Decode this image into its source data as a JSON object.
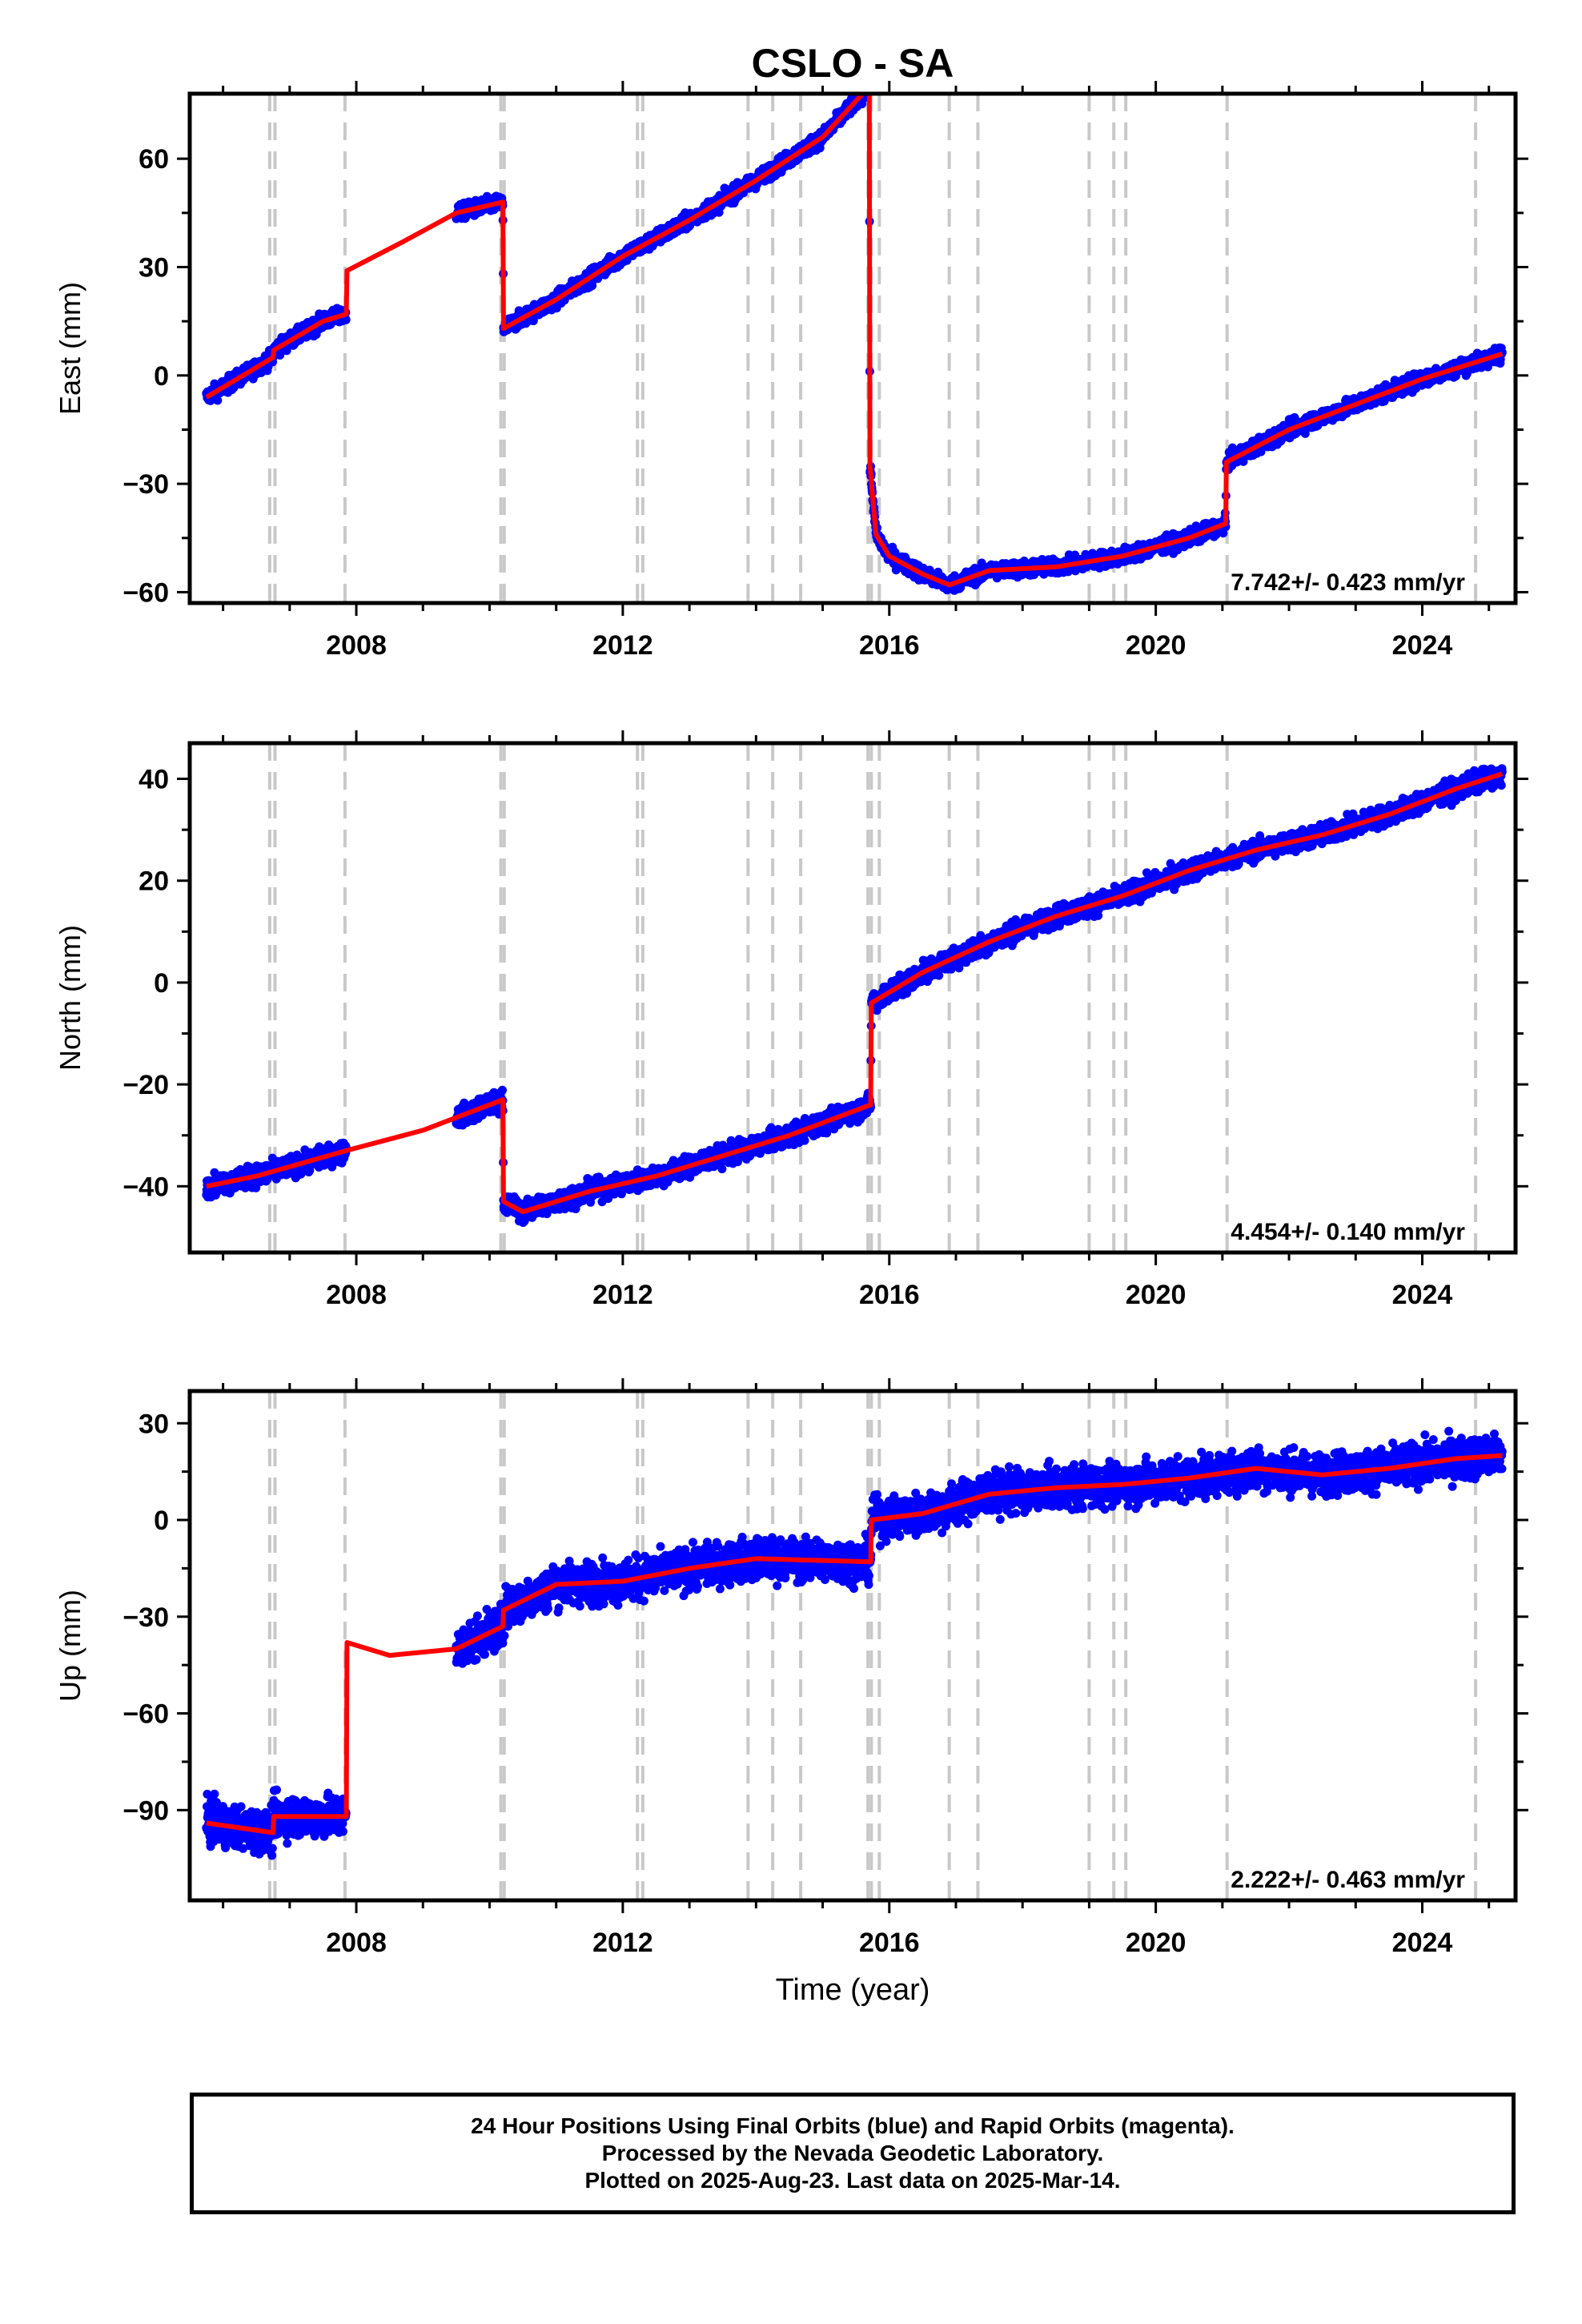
{
  "chart_data": [
    {
      "type": "scatter",
      "title": "CSLO - SA",
      "ylabel": "East (mm)",
      "xlabel": "",
      "xlim": [
        2005.5,
        2025.4
      ],
      "ylim": [
        -63,
        78
      ],
      "x_ticks": [
        2008,
        2012,
        2016,
        2020,
        2024
      ],
      "y_ticks": [
        -60,
        -30,
        0,
        30,
        60
      ],
      "x_tick_labels": [
        "2008",
        "2012",
        "2016",
        "2020",
        "2024"
      ],
      "y_tick_labels": [
        "−60",
        "−30",
        "0",
        "30",
        "60"
      ],
      "rate_label": "7.742+/- 0.423 mm/yr",
      "grid": false,
      "colors": {
        "final": "#0000ff",
        "model": "#ff0000",
        "steps": "#c8c8c8"
      },
      "data_ranges": [
        [
          2005.75,
          2007.85
        ],
        [
          2009.5,
          2015.72
        ],
        [
          2015.72,
          2025.2
        ]
      ],
      "scatter": 1.5,
      "model_line": {
        "x": [
          2005.75,
          2006.3,
          2006.75,
          2006.76,
          2007.5,
          2007.85,
          2007.86,
          2008.7,
          2009.5,
          2010.2,
          2010.21,
          2011.0,
          2012.0,
          2013.0,
          2014.0,
          2015.0,
          2015.7,
          2015.71,
          2015.8,
          2016.0,
          2016.5,
          2016.9,
          2017.5,
          2018.5,
          2019.5,
          2020.5,
          2021.05,
          2021.06,
          2022.0,
          2023.0,
          2024.0,
          2025.2
        ],
        "y": [
          -6,
          0,
          5,
          7,
          15,
          17,
          29,
          37,
          45,
          48,
          13,
          21,
          33,
          43,
          54,
          66,
          80,
          -25,
          -44,
          -50,
          -55,
          -58,
          -54,
          -53,
          -50,
          -45,
          -41,
          -24,
          -15,
          -8,
          -1,
          6
        ]
      }
    },
    {
      "type": "scatter",
      "title": "",
      "ylabel": "North (mm)",
      "xlabel": "",
      "xlim": [
        2005.5,
        2025.4
      ],
      "ylim": [
        -53,
        47
      ],
      "x_ticks": [
        2008,
        2012,
        2016,
        2020,
        2024
      ],
      "y_ticks": [
        -40,
        -20,
        0,
        20,
        40
      ],
      "x_tick_labels": [
        "2008",
        "2012",
        "2016",
        "2020",
        "2024"
      ],
      "y_tick_labels": [
        "−40",
        "−20",
        "0",
        "20",
        "40"
      ],
      "rate_label": "4.454+/- 0.140 mm/yr",
      "grid": false,
      "colors": {
        "final": "#0000ff",
        "model": "#ff0000",
        "steps": "#c8c8c8"
      },
      "data_ranges": [
        [
          2005.75,
          2007.85
        ],
        [
          2009.5,
          2015.72
        ],
        [
          2015.72,
          2025.2
        ]
      ],
      "scatter": 1.4,
      "model_line": {
        "x": [
          2005.75,
          2006.5,
          2007.85,
          2009.0,
          2010.2,
          2010.21,
          2010.5,
          2011.5,
          2012.5,
          2013.5,
          2014.5,
          2015.72,
          2015.73,
          2016.5,
          2017.5,
          2018.5,
          2019.5,
          2020.5,
          2021.5,
          2022.5,
          2023.5,
          2024.5,
          2025.2
        ],
        "y": [
          -40,
          -38,
          -33,
          -29,
          -23,
          -43,
          -45,
          -41,
          -38,
          -34,
          -30,
          -24,
          -4,
          2,
          8,
          13,
          17,
          22,
          26,
          29,
          33,
          38,
          41
        ]
      }
    },
    {
      "type": "scatter",
      "title": "",
      "ylabel": "Up (mm)",
      "xlabel": "Time (year)",
      "xlim": [
        2005.5,
        2025.4
      ],
      "ylim": [
        -118,
        40
      ],
      "x_ticks": [
        2008,
        2012,
        2016,
        2020,
        2024
      ],
      "y_ticks": [
        -90,
        -60,
        -30,
        0,
        30
      ],
      "x_tick_labels": [
        "2008",
        "2012",
        "2016",
        "2020",
        "2024"
      ],
      "y_tick_labels": [
        "−90",
        "−60",
        "−30",
        "0",
        "30"
      ],
      "rate_label": "2.222+/- 0.463 mm/yr",
      "grid": false,
      "colors": {
        "final": "#0000ff",
        "model": "#ff0000",
        "steps": "#c8c8c8"
      },
      "data_ranges": [
        [
          2005.75,
          2007.85
        ],
        [
          2009.5,
          2015.72
        ],
        [
          2015.72,
          2025.2
        ]
      ],
      "scatter": 4.5,
      "model_line": {
        "x": [
          2005.75,
          2006.75,
          2006.76,
          2007.85,
          2007.86,
          2008.5,
          2009.5,
          2010.2,
          2010.21,
          2011.0,
          2012.0,
          2013.0,
          2014.0,
          2015.72,
          2015.73,
          2016.5,
          2017.5,
          2018.5,
          2019.5,
          2020.5,
          2021.5,
          2022.5,
          2023.5,
          2024.5,
          2025.2
        ],
        "y": [
          -94,
          -97,
          -92,
          -92,
          -38,
          -42,
          -40,
          -33,
          -28,
          -20,
          -19,
          -15,
          -12,
          -13,
          0,
          2,
          8,
          10,
          11,
          13,
          16,
          14,
          16,
          19,
          20
        ]
      }
    }
  ],
  "steps": [
    2006.7,
    2006.78,
    2007.83,
    2010.17,
    2010.22,
    2012.22,
    2012.3,
    2013.88,
    2014.25,
    2014.67,
    2015.68,
    2015.73,
    2015.85,
    2016.9,
    2017.33,
    2019.0,
    2019.37,
    2019.55,
    2021.07,
    2024.8
  ],
  "footer": {
    "line1": "24 Hour Positions Using Final Orbits (blue) and Rapid Orbits (magenta).",
    "line2": "Processed by the Nevada Geodetic Laboratory.",
    "line3": "Plotted on 2025-Aug-23. Last data on 2025-Mar-14."
  }
}
